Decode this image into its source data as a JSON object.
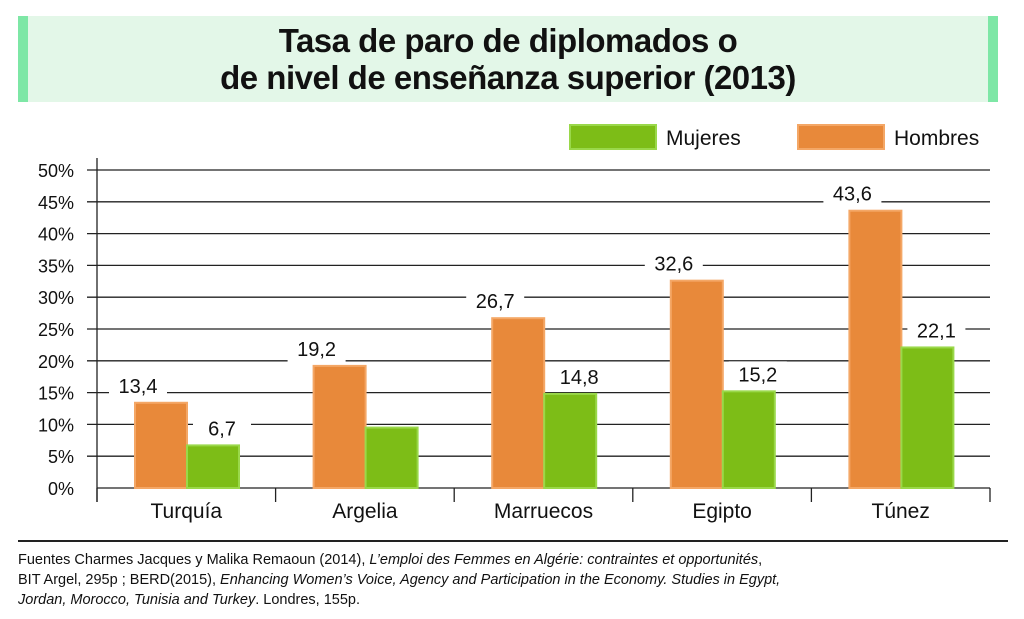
{
  "title_lines": [
    "Tasa de paro de diplomados o",
    "de nivel de enseñanza superior (2013)"
  ],
  "chart_data": {
    "type": "bar",
    "title": "Tasa de paro de diplomados o de nivel de enseñanza superior (2013)",
    "categories": [
      "Turquía",
      "Argelia",
      "Marruecos",
      "Egipto",
      "Túnez"
    ],
    "series": [
      {
        "name": "Hombres",
        "color": "#e8893a",
        "values": [
          13.4,
          19.2,
          26.7,
          32.6,
          43.6
        ],
        "labels": [
          "13,4",
          "19,2",
          "26,7",
          "32,6",
          "43,6"
        ]
      },
      {
        "name": "Mujeres",
        "color": "#7dbd17",
        "values": [
          6.7,
          9.5,
          14.8,
          15.2,
          22.1
        ],
        "labels": [
          "6,7",
          "",
          "14,8",
          "15,2",
          "22,1"
        ]
      }
    ],
    "legend": [
      "Mujeres",
      "Hombres"
    ],
    "ylim": [
      0,
      50
    ],
    "yticks": [
      "0%",
      "5%",
      "10%",
      "15%",
      "20%",
      "25%",
      "30%",
      "35%",
      "40%",
      "45%",
      "50%"
    ],
    "grid": true,
    "legend_position": "top-right"
  },
  "sources": {
    "line1_a": "Fuentes Charmes Jacques y Malika Remaoun (2014), ",
    "line1_b": "L’emploi des Femmes en Algérie: contraintes et opportunités",
    "line1_c": ",",
    "line2_a": "BIT Argel, 295p ; BERD(2015), ",
    "line2_b": "Enhancing Women’s Voice, Agency and Participation in the Economy. Studies in Egypt,",
    "line3_a": "Jordan, Morocco, Tunisia and Turkey",
    "line3_b": ". Londres, 155p."
  }
}
